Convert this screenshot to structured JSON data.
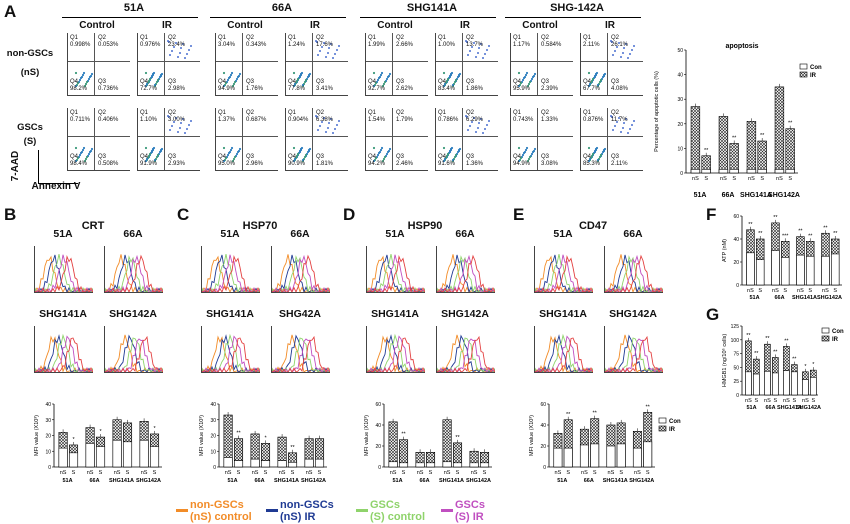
{
  "panels": {
    "A": "A",
    "B": "B",
    "C": "C",
    "D": "D",
    "E": "E",
    "F": "F",
    "G": "G"
  },
  "panelA": {
    "cell_lines": [
      "51A",
      "66A",
      "SHG141A",
      "SHG-142A"
    ],
    "conditions": [
      "Control",
      "IR"
    ],
    "rows": [
      {
        "label_line1": "non-GSCs",
        "label_line2": "(nS)"
      },
      {
        "label_line1": "GSCs",
        "label_line2": "(S)"
      }
    ],
    "y_axis": "7-AAD",
    "x_axis": "Annexin V",
    "quadrants": [
      [
        {
          "q1": "0.998%",
          "q2": "0.053%",
          "q4": "98.2%",
          "q3": "0.736%"
        },
        {
          "q1": "0.976%",
          "q2": "23.4%",
          "q4": "72.7%",
          "q3": "2.98%"
        },
        {
          "q1": "3.04%",
          "q2": "0.343%",
          "q4": "94.9%",
          "q3": "1.76%"
        },
        {
          "q1": "1.24%",
          "q2": "17.6%",
          "q4": "77.8%",
          "q3": "3.41%"
        },
        {
          "q1": "1.99%",
          "q2": "2.66%",
          "q4": "92.7%",
          "q3": "2.62%"
        },
        {
          "q1": "1.00%",
          "q2": "13.7%",
          "q4": "83.4%",
          "q3": "1.86%"
        },
        {
          "q1": "1.17%",
          "q2": "0.584%",
          "q4": "95.9%",
          "q3": "2.39%"
        },
        {
          "q1": "2.11%",
          "q2": "26.1%",
          "q4": "67.7%",
          "q3": "4.08%"
        }
      ],
      [
        {
          "q1": "0.711%",
          "q2": "0.406%",
          "q4": "98.4%",
          "q3": "0.508%"
        },
        {
          "q1": "1.10%",
          "q2": "3.00%",
          "q4": "91.9%",
          "q3": "2.93%"
        },
        {
          "q1": "1.37%",
          "q2": "0.687%",
          "q4": "95.0%",
          "q3": "2.96%"
        },
        {
          "q1": "0.904%",
          "q2": "6.38%",
          "q4": "90.9%",
          "q3": "1.81%"
        },
        {
          "q1": "1.54%",
          "q2": "1.79%",
          "q4": "94.2%",
          "q3": "2.46%"
        },
        {
          "q1": "0.786%",
          "q2": "6.29%",
          "q4": "91.6%",
          "q3": "1.36%"
        },
        {
          "q1": "0.743%",
          "q2": "1.33%",
          "q4": "94.9%",
          "q3": "3.08%"
        },
        {
          "q1": "0.876%",
          "q2": "11.7%",
          "q4": "85.3%",
          "q3": "2.11%"
        }
      ]
    ]
  },
  "histograms": {
    "B": {
      "title": "CRT",
      "labels": [
        "51A",
        "66A",
        "SHG141A",
        "SHG142A"
      ]
    },
    "C": {
      "title": "HSP70",
      "labels": [
        "51A",
        "66A",
        "SHG141A",
        "SHG42A"
      ]
    },
    "D": {
      "title": "HSP90",
      "labels": [
        "51A",
        "66A",
        "SHG141A",
        "SHG142A"
      ]
    },
    "E": {
      "title": "CD47",
      "labels": [
        "51A",
        "66A",
        "SHG141A",
        "SHG142A"
      ]
    }
  },
  "legend": {
    "items": [
      {
        "line1": "non-GSCs",
        "line2": "(nS) control",
        "color": "#f28c28"
      },
      {
        "line1": "non-GSCs",
        "line2": "(nS) IR",
        "color": "#1f3a93"
      },
      {
        "line1": "GSCs",
        "line2": "(S) control",
        "color": "#8fd36b"
      },
      {
        "line1": "GSCs",
        "line2": "(S) IR",
        "color": "#c04fc0"
      }
    ]
  },
  "chart_data": [
    {
      "id": "A-apoptosis",
      "type": "bar",
      "title": "apoptosis",
      "ylabel": "Percentage of apoptotic cells (%)",
      "ylim": [
        0,
        50
      ],
      "yticks": [
        0,
        10,
        20,
        30,
        40,
        50
      ],
      "groups": [
        "51A",
        "66A",
        "SHG141A",
        "SHG142A"
      ],
      "bar_labels": [
        "nS",
        "S"
      ],
      "series": [
        {
          "name": "Con",
          "values": [
            1.5,
            1.5,
            1.5,
            1.5,
            1.5,
            1.5,
            1.5,
            1.5
          ]
        },
        {
          "name": "IR",
          "values": [
            27,
            7,
            23,
            12,
            21,
            13,
            35,
            18
          ]
        }
      ],
      "annotations": [
        "**",
        "**",
        "**",
        "**"
      ],
      "legend": [
        "Con",
        "IR"
      ]
    },
    {
      "id": "B-MFI",
      "type": "bar",
      "ylabel": "MFI value (X10³)",
      "ylim": [
        0,
        40
      ],
      "yticks": [
        0,
        10,
        20,
        30,
        40
      ],
      "groups": [
        "51A",
        "66A",
        "SHG141A",
        "SHG142A"
      ],
      "bar_labels": [
        "nS",
        "S"
      ],
      "series": [
        {
          "name": "Con",
          "values": [
            12,
            9,
            15,
            13,
            17,
            16,
            17,
            13
          ]
        },
        {
          "name": "IR",
          "values": [
            22,
            14,
            25,
            19,
            30,
            28,
            29,
            21
          ]
        }
      ],
      "annotations": [
        "*",
        "*",
        "",
        "*"
      ]
    },
    {
      "id": "C-MFI",
      "type": "bar",
      "ylabel": "MFI value (X10³)",
      "ylim": [
        0,
        40
      ],
      "yticks": [
        0,
        10,
        20,
        30,
        40
      ],
      "groups": [
        "51A",
        "66A",
        "SHG141A",
        "SHG142A"
      ],
      "bar_labels": [
        "nS",
        "S"
      ],
      "series": [
        {
          "name": "Con",
          "values": [
            6,
            4,
            5,
            4,
            4,
            3,
            5,
            5
          ]
        },
        {
          "name": "IR",
          "values": [
            33,
            18,
            21,
            15,
            19,
            9,
            18,
            18
          ]
        }
      ],
      "annotations": [
        "**",
        "*",
        "**",
        ""
      ]
    },
    {
      "id": "D-MFI",
      "type": "bar",
      "ylabel": "MFI value (X10³)",
      "ylim": [
        0,
        60
      ],
      "yticks": [
        0,
        20,
        40,
        60
      ],
      "groups": [
        "51A",
        "66A",
        "SHG141A",
        "SHG142A"
      ],
      "bar_labels": [
        "nS",
        "S"
      ],
      "series": [
        {
          "name": "Con",
          "values": [
            5,
            4,
            4,
            4,
            5,
            4,
            4,
            4
          ]
        },
        {
          "name": "IR",
          "values": [
            43,
            26,
            14,
            14,
            45,
            23,
            15,
            14
          ]
        }
      ],
      "annotations": [
        "**",
        "",
        "**",
        ""
      ]
    },
    {
      "id": "E-MFI",
      "type": "bar",
      "ylabel": "MFI value (X10³)",
      "ylim": [
        0,
        60
      ],
      "yticks": [
        0,
        20,
        40,
        60
      ],
      "groups": [
        "51A",
        "66A",
        "SHG141A",
        "SHG142A"
      ],
      "bar_labels": [
        "nS",
        "S"
      ],
      "series": [
        {
          "name": "Con",
          "values": [
            18,
            18,
            21,
            22,
            20,
            22,
            18,
            24
          ]
        },
        {
          "name": "IR",
          "values": [
            32,
            45,
            36,
            46,
            40,
            42,
            34,
            52
          ]
        }
      ],
      "annotations": [
        "**",
        "**",
        "",
        "**"
      ],
      "legend": [
        "Con",
        "IR"
      ]
    },
    {
      "id": "F-ATP",
      "type": "bar",
      "ylabel": "ATP (nM)",
      "ylim": [
        0,
        60
      ],
      "yticks": [
        0,
        20,
        40,
        60
      ],
      "groups": [
        "51A",
        "66A",
        "SHG141A",
        "SHG142A"
      ],
      "bar_labels": [
        "nS",
        "S"
      ],
      "series": [
        {
          "name": "Con",
          "values": [
            28,
            22,
            30,
            24,
            26,
            25,
            25,
            27
          ]
        },
        {
          "name": "IR",
          "values": [
            48,
            40,
            54,
            38,
            42,
            38,
            45,
            40
          ]
        }
      ],
      "annotations": [
        "**",
        "**",
        "**",
        "***",
        "**",
        "**",
        "**",
        "**"
      ]
    },
    {
      "id": "G-HMGB1",
      "type": "bar",
      "ylabel": "HMGB1 (ng/10⁶ cells)",
      "ylim": [
        0,
        125
      ],
      "yticks": [
        0,
        25,
        50,
        75,
        100,
        125
      ],
      "groups": [
        "51A",
        "66A",
        "SHG141A",
        "SHG142A"
      ],
      "bar_labels": [
        "nS",
        "S"
      ],
      "series": [
        {
          "name": "Con",
          "values": [
            42,
            38,
            43,
            40,
            44,
            42,
            28,
            32
          ]
        },
        {
          "name": "IR",
          "values": [
            98,
            65,
            92,
            68,
            88,
            55,
            42,
            45
          ]
        }
      ],
      "annotations": [
        "**",
        "**",
        "**",
        "**",
        "**",
        "**",
        "*",
        "*"
      ],
      "legend": [
        "Con",
        "IR"
      ]
    }
  ]
}
